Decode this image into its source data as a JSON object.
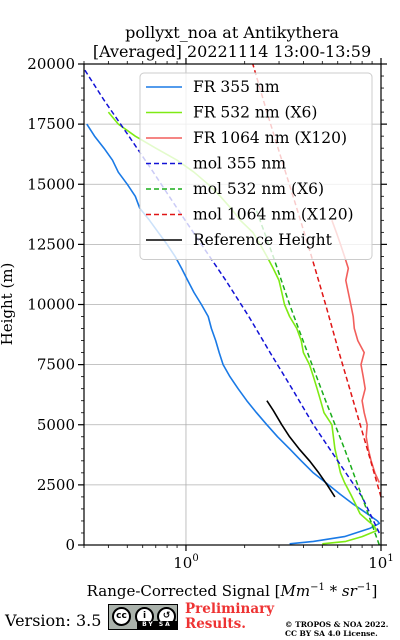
{
  "chart_data": {
    "type": "line",
    "title_line1": "pollyxt_noa at Antikythera",
    "title_line2": "[Averaged] 20221114 13:00-13:59",
    "xlabel_prefix": "Range-Corrected Signal [",
    "xlabel_units": "Mm",
    "xlabel_units_exp": "−1",
    "xlabel_times": " * ",
    "xlabel_units2": "sr",
    "xlabel_units2_exp": "−1",
    "xlabel_suffix": "]",
    "ylabel": "Height (m)",
    "xscale": "log",
    "xlim": [
      0.3,
      10
    ],
    "ylim": [
      0,
      20000
    ],
    "xtick_labels": [
      {
        "base": "10",
        "exp": "0",
        "value": 1
      },
      {
        "base": "10",
        "exp": "1",
        "value": 10
      }
    ],
    "yticks": [
      0,
      2500,
      5000,
      7500,
      10000,
      12500,
      15000,
      17500,
      20000
    ],
    "ytick_labels": [
      "0",
      "2500",
      "5000",
      "7500",
      "10000",
      "12500",
      "15000",
      "17500",
      "20000"
    ],
    "grid": true,
    "legend_position": "top-right",
    "series": [
      {
        "name": "FR 355 nm",
        "color": "#1a7ae6",
        "style": "solid",
        "points": [
          [
            3.4,
            50
          ],
          [
            4.5,
            150
          ],
          [
            6.5,
            350
          ],
          [
            8.8,
            700
          ],
          [
            9.8,
            900
          ],
          [
            9.6,
            1000
          ],
          [
            8.5,
            1300
          ],
          [
            7.2,
            1700
          ],
          [
            6.2,
            2100
          ],
          [
            5.2,
            2600
          ],
          [
            4.5,
            3000
          ],
          [
            3.9,
            3500
          ],
          [
            3.4,
            4000
          ],
          [
            2.95,
            4500
          ],
          [
            2.6,
            5000
          ],
          [
            2.3,
            5500
          ],
          [
            2.05,
            6000
          ],
          [
            1.85,
            6500
          ],
          [
            1.68,
            7000
          ],
          [
            1.55,
            7500
          ],
          [
            1.48,
            8000
          ],
          [
            1.42,
            8500
          ],
          [
            1.35,
            9000
          ],
          [
            1.3,
            9500
          ],
          [
            1.2,
            10000
          ],
          [
            1.1,
            10500
          ],
          [
            1.02,
            11000
          ],
          [
            0.95,
            11500
          ],
          [
            0.88,
            12000
          ],
          [
            0.8,
            12500
          ],
          [
            0.72,
            13000
          ],
          [
            0.65,
            13500
          ],
          [
            0.58,
            14000
          ],
          [
            0.55,
            14500
          ],
          [
            0.5,
            15000
          ],
          [
            0.45,
            15500
          ],
          [
            0.42,
            16000
          ],
          [
            0.38,
            16500
          ],
          [
            0.34,
            17000
          ],
          [
            0.31,
            17500
          ]
        ]
      },
      {
        "name": "FR 532 nm (X6)",
        "color": "#7fea14",
        "style": "solid",
        "points": [
          [
            5.0,
            50
          ],
          [
            6.6,
            150
          ],
          [
            8.0,
            350
          ],
          [
            9.5,
            600
          ],
          [
            9.2,
            800
          ],
          [
            8.6,
            1000
          ],
          [
            7.8,
            1300
          ],
          [
            7.4,
            1700
          ],
          [
            7.0,
            2100
          ],
          [
            6.5,
            2600
          ],
          [
            6.2,
            3000
          ],
          [
            6.0,
            3500
          ],
          [
            5.8,
            4000
          ],
          [
            5.7,
            4500
          ],
          [
            5.6,
            5000
          ],
          [
            5.1,
            5500
          ],
          [
            4.9,
            6000
          ],
          [
            4.7,
            6500
          ],
          [
            4.5,
            7000
          ],
          [
            4.3,
            7500
          ],
          [
            4.0,
            8000
          ],
          [
            3.9,
            8500
          ],
          [
            3.7,
            9000
          ],
          [
            3.4,
            9500
          ],
          [
            3.2,
            10000
          ],
          [
            3.1,
            10500
          ],
          [
            3.0,
            11000
          ],
          [
            2.8,
            11500
          ],
          [
            2.6,
            12000
          ],
          [
            2.4,
            12500
          ],
          [
            2.2,
            13000
          ],
          [
            1.9,
            13500
          ],
          [
            1.7,
            14000
          ],
          [
            1.5,
            14500
          ],
          [
            1.3,
            15000
          ],
          [
            1.1,
            15500
          ],
          [
            0.9,
            16000
          ],
          [
            0.7,
            16500
          ],
          [
            0.55,
            17000
          ],
          [
            0.45,
            17500
          ],
          [
            0.4,
            18000
          ]
        ]
      },
      {
        "name": "FR 1064 nm (X120)",
        "color": "#f25f5c",
        "style": "solid",
        "points": [
          [
            9.8,
            2600
          ],
          [
            9.3,
            3000
          ],
          [
            8.9,
            3500
          ],
          [
            8.6,
            4000
          ],
          [
            8.4,
            4500
          ],
          [
            8.5,
            5000
          ],
          [
            8.2,
            5500
          ],
          [
            8.0,
            6000
          ],
          [
            8.3,
            6500
          ],
          [
            8.1,
            7000
          ],
          [
            7.9,
            7500
          ],
          [
            8.2,
            8000
          ],
          [
            7.6,
            8500
          ],
          [
            7.3,
            9000
          ],
          [
            7.2,
            9500
          ],
          [
            7.0,
            10000
          ],
          [
            6.8,
            10500
          ],
          [
            6.6,
            11000
          ],
          [
            6.8,
            11500
          ],
          [
            6.5,
            12000
          ],
          [
            6.2,
            12500
          ],
          [
            5.9,
            13000
          ],
          [
            5.6,
            13500
          ]
        ]
      },
      {
        "name": "mol 355 nm",
        "color": "#1212d6",
        "style": "dashed",
        "points": [
          [
            9.8,
            500
          ],
          [
            8.0,
            2000
          ],
          [
            6.0,
            3500
          ],
          [
            4.5,
            5000
          ],
          [
            3.5,
            6500
          ],
          [
            2.7,
            8000
          ],
          [
            2.1,
            9500
          ],
          [
            1.6,
            11000
          ],
          [
            1.2,
            12500
          ],
          [
            0.9,
            14000
          ],
          [
            0.68,
            15500
          ],
          [
            0.51,
            17000
          ],
          [
            0.38,
            18500
          ],
          [
            0.3,
            19800
          ]
        ]
      },
      {
        "name": "mol 532 nm (X6)",
        "color": "#1aad1a",
        "style": "dashed",
        "points": [
          [
            9.8,
            0
          ],
          [
            8.0,
            2000
          ],
          [
            6.5,
            4000
          ],
          [
            5.2,
            6000
          ],
          [
            4.2,
            8000
          ],
          [
            3.4,
            10000
          ],
          [
            2.8,
            12000
          ],
          [
            2.3,
            13900
          ]
        ]
      },
      {
        "name": "mol 1064 nm (X120)",
        "color": "#e01515",
        "style": "dashed",
        "points": [
          [
            10,
            2000
          ],
          [
            8.5,
            4000
          ],
          [
            7.2,
            6000
          ],
          [
            6.1,
            8000
          ],
          [
            5.2,
            10000
          ],
          [
            4.4,
            12000
          ],
          [
            3.7,
            14000
          ],
          [
            3.1,
            16000
          ],
          [
            2.6,
            18000
          ],
          [
            2.2,
            20000
          ]
        ]
      },
      {
        "name": "Reference Height",
        "color": "#000000",
        "style": "solid",
        "points": [
          [
            2.6,
            6000
          ],
          [
            2.8,
            5600
          ],
          [
            3.1,
            5000
          ],
          [
            3.4,
            4500
          ],
          [
            3.8,
            4000
          ],
          [
            4.3,
            3500
          ],
          [
            4.8,
            3000
          ],
          [
            5.3,
            2500
          ],
          [
            5.8,
            2000
          ]
        ]
      }
    ]
  },
  "footer": {
    "version_label": "Version: 3.5",
    "license_badge": "BY SA",
    "license_badge_icons": [
      "cc-icon",
      "by-icon",
      "sa-icon"
    ],
    "cc_glyph": "cc",
    "by_glyph": "i",
    "sa_glyph": "↺",
    "preliminary_line1": "Preliminary",
    "preliminary_line2": "Results.",
    "preliminary_color": "#ee3333",
    "copyright_line1": "© TROPOS & NOA 2022.",
    "copyright_line2": "CC BY SA 4.0 License."
  }
}
